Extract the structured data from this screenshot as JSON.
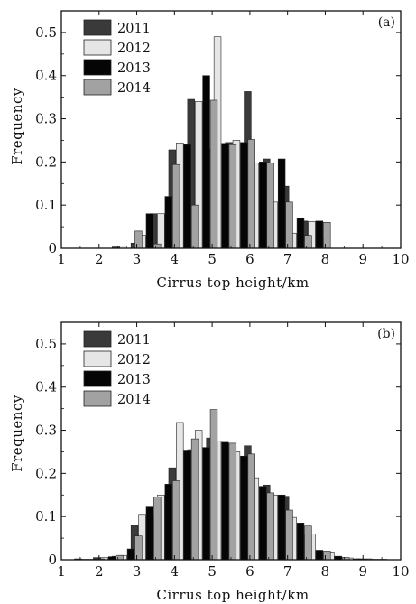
{
  "chart_data": [
    {
      "type": "bar",
      "panel_label": "(a)",
      "xlabel": "Cirrus top height/km",
      "ylabel": "Frequency",
      "xlim": [
        1,
        10
      ],
      "ylim": [
        0,
        0.55
      ],
      "xticks": [
        "1",
        "2",
        "3",
        "4",
        "5",
        "6",
        "7",
        "8",
        "9",
        "10"
      ],
      "yticks": [
        "0",
        "0.1",
        "0.2",
        "0.3",
        "0.4",
        "0.5"
      ],
      "legend_position": "top-left",
      "bin_centers": [
        1.75,
        2.25,
        2.75,
        3.25,
        3.75,
        4.25,
        4.75,
        5.25,
        5.75,
        6.25,
        6.75,
        7.25,
        7.75,
        8.25,
        8.75
      ],
      "series": [
        {
          "name": "2011",
          "color": "#3a3a3a",
          "values": [
            0,
            0,
            0.003,
            0.012,
            0.08,
            0.228,
            0.345,
            0.23,
            0.245,
            0.363,
            0.207,
            0.144,
            0.063,
            0.022,
            0
          ]
        },
        {
          "name": "2012",
          "color": "#e6e6e6",
          "values": [
            0,
            0,
            0.005,
            0.03,
            0.08,
            0.244,
            0.34,
            0.49,
            0.25,
            0.198,
            0.107,
            0.035,
            0.062,
            0,
            0
          ]
        },
        {
          "name": "2013",
          "color": "#050505",
          "values": [
            0,
            0,
            0,
            0.08,
            0.12,
            0.24,
            0.4,
            0.243,
            0.245,
            0.2,
            0.207,
            0.07,
            0.063,
            0,
            0
          ]
        },
        {
          "name": "2014",
          "color": "#a2a2a2",
          "values": [
            0,
            0,
            0.04,
            0.01,
            0.194,
            0.1,
            0.343,
            0.24,
            0.252,
            0.198,
            0.107,
            0.03,
            0.06,
            0,
            0
          ]
        }
      ]
    },
    {
      "type": "bar",
      "panel_label": "(b)",
      "xlabel": "Cirrus top height/km",
      "ylabel": "Frequency",
      "xlim": [
        1,
        10
      ],
      "ylim": [
        0,
        0.55
      ],
      "xticks": [
        "1",
        "2",
        "3",
        "4",
        "5",
        "6",
        "7",
        "8",
        "9",
        "10"
      ],
      "yticks": [
        "0",
        "0.1",
        "0.2",
        "0.3",
        "0.4",
        "0.5"
      ],
      "legend_position": "top-left",
      "bin_centers": [
        1.75,
        2.25,
        2.75,
        3.25,
        3.75,
        4.25,
        4.75,
        5.25,
        5.75,
        6.25,
        6.75,
        7.25,
        7.75,
        8.25,
        8.75,
        9.25
      ],
      "series": [
        {
          "name": "2011",
          "color": "#3a3a3a",
          "values": [
            0.002,
            0.005,
            0.008,
            0.08,
            0.1,
            0.213,
            0.255,
            0.282,
            0.268,
            0.264,
            0.173,
            0.147,
            0.06,
            0.015,
            0.005,
            0.002
          ]
        },
        {
          "name": "2012",
          "color": "#e6e6e6",
          "values": [
            0.001,
            0.005,
            0.01,
            0.105,
            0.15,
            0.318,
            0.3,
            0.275,
            0.25,
            0.19,
            0.15,
            0.098,
            0.06,
            0.018,
            0.004,
            0.002
          ]
        },
        {
          "name": "2013",
          "color": "#050505",
          "values": [
            0.001,
            0.007,
            0.025,
            0.122,
            0.175,
            0.254,
            0.26,
            0.272,
            0.24,
            0.17,
            0.15,
            0.085,
            0.022,
            0.008,
            0.002,
            0.001
          ]
        },
        {
          "name": "2014",
          "color": "#a2a2a2",
          "values": [
            0.002,
            0.01,
            0.055,
            0.145,
            0.183,
            0.28,
            0.348,
            0.27,
            0.245,
            0.155,
            0.115,
            0.078,
            0.02,
            0.005,
            0.001,
            0.001
          ]
        }
      ]
    }
  ]
}
